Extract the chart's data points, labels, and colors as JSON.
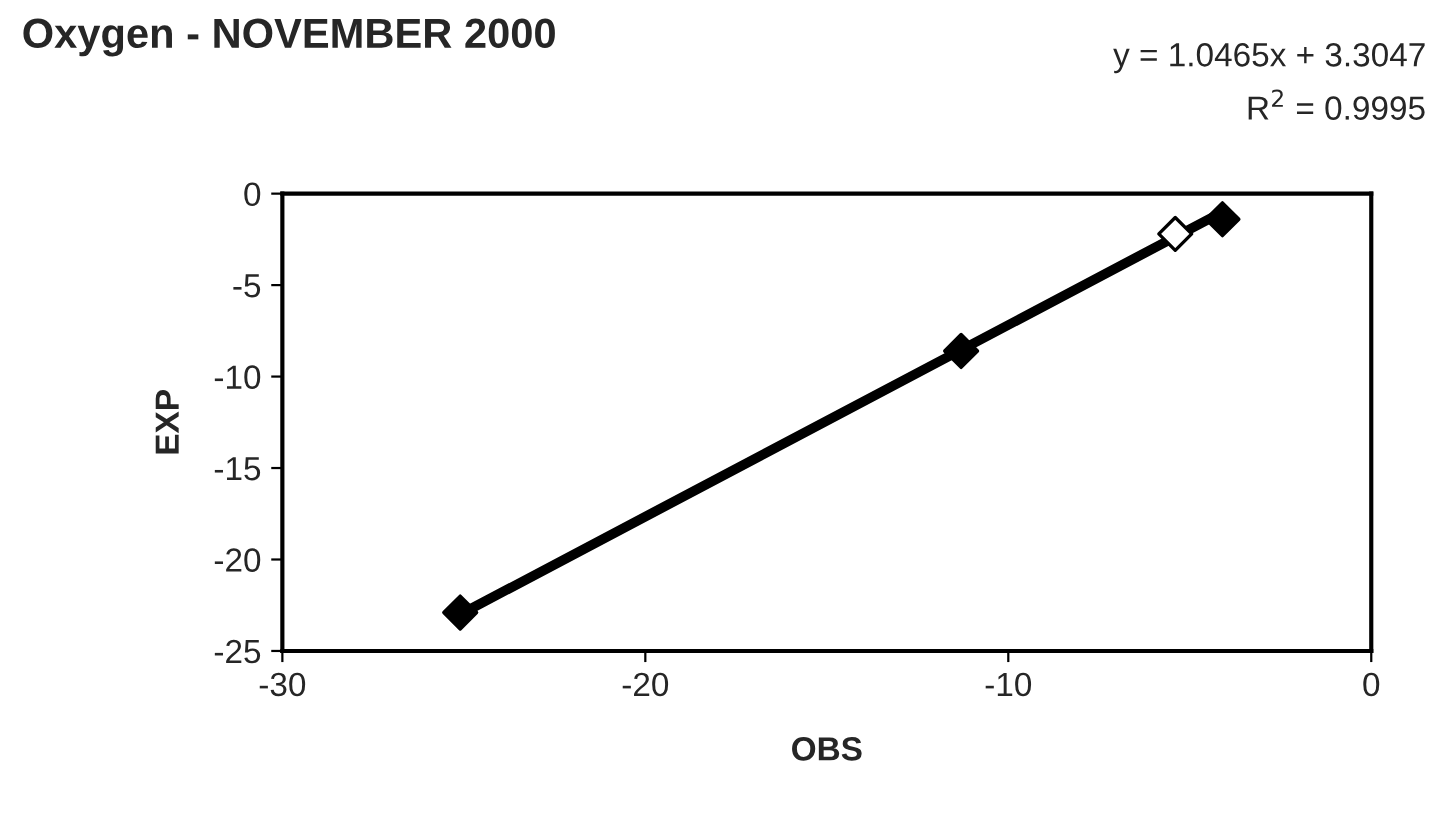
{
  "chart_data": {
    "type": "scatter",
    "title": "Oxygen - NOVEMBER 2000",
    "xlabel": "OBS",
    "ylabel": "EXP",
    "annotations": [
      "y = 1.0465x + 3.3047",
      "R$^{2}$ = 0.9995"
    ],
    "series": [
      {
        "color": "#000000",
        "marker": "diamond",
        "x": [
          -25.1,
          -11.3,
          -4.1
        ],
        "values": [
          -22.9,
          -8.6,
          -1.4
        ]
      },
      {
        "color": "#ffffff",
        "marker": "diamond",
        "x": [
          -5.4
        ],
        "values": [
          -2.2
        ]
      },
      {
        "type": "line",
        "color": "#000000",
        "marker": "none",
        "x": [
          -25.1,
          -4.1
        ],
        "values": [
          -23.0,
          -1.0
        ]
      }
    ],
    "xlim": [
      -30,
      0
    ],
    "xticks": [
      -30,
      -20,
      -10,
      0
    ],
    "ylim": [
      -25,
      0
    ],
    "yticks": [
      0,
      -5,
      -10,
      -15,
      -20,
      -25
    ],
    "grid": false,
    "legend": false
  }
}
